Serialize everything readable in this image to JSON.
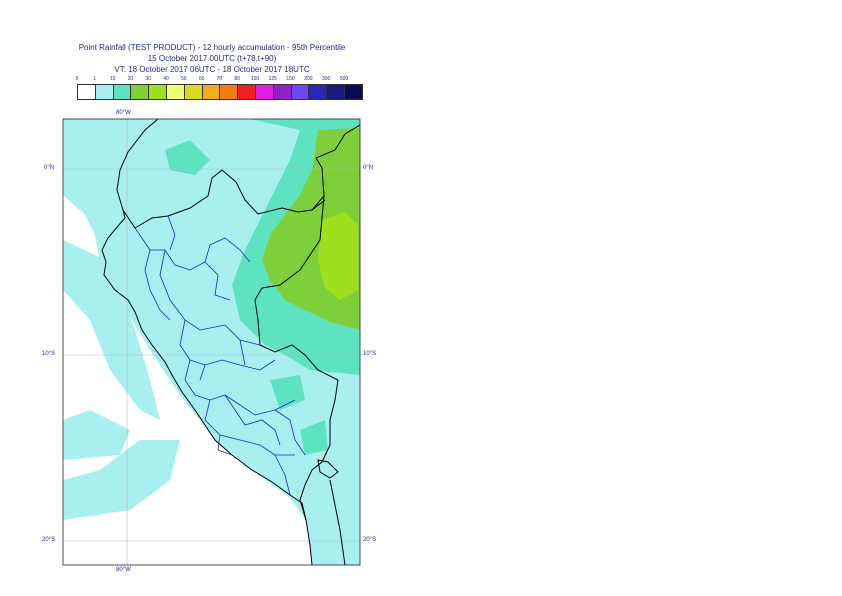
{
  "title": {
    "line1": "Point Rainfall (TEST PRODUCT) - 12 hourly accumulation - 95th Percentile",
    "line2": "15 October 2017 00UTC (t+78,t+90)",
    "line3": "VT: 18 October 2017 06UTC - 18 October 2017 18UTC"
  },
  "legend": {
    "thresholds": [
      "0",
      "1",
      "10",
      "20",
      "30",
      "40",
      "50",
      "60",
      "70",
      "80",
      "100",
      "125",
      "150",
      "200",
      "300",
      "500"
    ],
    "colors": [
      "#ffffff",
      "#a8f0f0",
      "#5ee3c1",
      "#7fcf3a",
      "#9fe01e",
      "#ecff70",
      "#dada1e",
      "#f5ac14",
      "#f47c14",
      "#f02020",
      "#e020e0",
      "#9020c8",
      "#6c48f0",
      "#2828b4",
      "#1a1a7c",
      "#0b0b55"
    ]
  },
  "axes": {
    "lon_top": "80°W",
    "lon_bottom": "80°W",
    "lat_right": [
      "0°N",
      "10°S",
      "20°S"
    ],
    "lat_left": [
      "0°N",
      "10°S",
      "20°S"
    ]
  }
}
